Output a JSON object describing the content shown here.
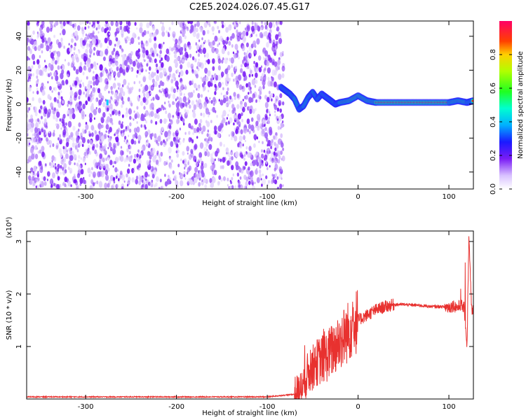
{
  "title": "C2E5.2024.026.07.45.G17",
  "colors": {
    "snr_line": "#e8312f",
    "spectro_noise": "#7a1cf5",
    "spectro_noise_light": "#c9a6fb"
  },
  "chart_data": [
    {
      "type": "heatmap",
      "xlabel": "Height of straight line (km)",
      "ylabel": "Frequency (Hz)",
      "xlim": [
        -365,
        127
      ],
      "ylim": [
        -50,
        49
      ],
      "xticks": [
        -300,
        -200,
        -100,
        0,
        100
      ],
      "xtick_labels": [
        "-300",
        "-200",
        "-100",
        "0",
        "100"
      ],
      "yticks": [
        -40,
        -20,
        0,
        20,
        40
      ],
      "ytick_labels": [
        "-40",
        "-20",
        "0",
        "20",
        "40"
      ],
      "noise_region_x": [
        -365,
        -82
      ],
      "signal_track": {
        "x": [
          -85,
          -80,
          -75,
          -70,
          -65,
          -60,
          -55,
          -50,
          -45,
          -40,
          -35,
          -30,
          -25,
          -20,
          -10,
          0,
          10,
          20,
          40,
          60,
          80,
          100,
          110,
          120,
          127
        ],
        "y": [
          10,
          8,
          6,
          3,
          -3,
          -1,
          4,
          7,
          3,
          6,
          4,
          2,
          0,
          1,
          2,
          5,
          2,
          1,
          1,
          1,
          1,
          1,
          2,
          1,
          2
        ]
      },
      "colorbar": {
        "label": "Normalized spectral amplitude",
        "range": [
          0,
          1
        ],
        "ticks": [
          0.0,
          0.2,
          0.4,
          0.6,
          0.8
        ],
        "tick_labels": [
          "0.0",
          "0.2",
          "0.4",
          "0.6",
          "0.8"
        ]
      },
      "grid": false
    },
    {
      "type": "line",
      "xlabel": "Height of straight line (km)",
      "ylabel": "SNR (10 * v/v)",
      "y_multiplier": "(x10⁴)",
      "xlim": [
        -365,
        127
      ],
      "ylim": [
        0,
        3.2
      ],
      "xticks": [
        -300,
        -200,
        -100,
        0,
        100
      ],
      "xtick_labels": [
        "-300",
        "-200",
        "-100",
        "0",
        "100"
      ],
      "yticks": [
        1,
        2,
        3
      ],
      "ytick_labels": [
        "1",
        "2",
        "3"
      ],
      "series": [
        {
          "x": [
            -365,
            -300,
            -200,
            -100,
            -65,
            -55,
            -45,
            -35,
            -25,
            -15,
            -10,
            -5,
            0,
            5,
            10,
            20,
            30,
            40,
            50,
            60,
            70,
            80,
            90,
            100,
            105,
            110,
            113,
            117,
            120,
            122,
            125,
            127
          ],
          "y": [
            0.04,
            0.04,
            0.04,
            0.04,
            0.1,
            0.5,
            0.7,
            0.8,
            1.0,
            1.2,
            1.3,
            1.45,
            1.5,
            1.55,
            1.6,
            1.7,
            1.76,
            1.8,
            1.8,
            1.79,
            1.78,
            1.76,
            1.76,
            1.75,
            1.78,
            1.74,
            1.8,
            1.72,
            1.0,
            3.1,
            1.7,
            1.68
          ]
        }
      ],
      "grid": false
    }
  ]
}
